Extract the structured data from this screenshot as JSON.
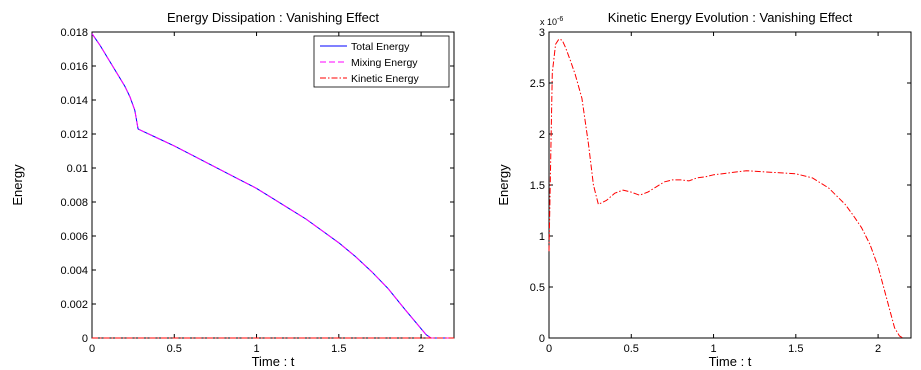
{
  "chart_data": [
    {
      "type": "line",
      "title": "Energy Dissipation : Vanishing Effect",
      "xlabel": "Time : t",
      "ylabel": "Energy",
      "xlim": [
        0,
        2.2
      ],
      "ylim": [
        0,
        0.018
      ],
      "grid": false,
      "legend_position": "top-right",
      "xticks": [
        0,
        0.5,
        1,
        1.5,
        2
      ],
      "xtick_labels": [
        "0",
        "0.5",
        "1",
        "1.5",
        "2"
      ],
      "yticks": [
        0,
        0.002,
        0.004,
        0.006,
        0.008,
        0.01,
        0.012,
        0.014,
        0.016,
        0.018
      ],
      "ytick_labels": [
        "0",
        "0.002",
        "0.004",
        "0.006",
        "0.008",
        "0.01",
        "0.012",
        "0.014",
        "0.016",
        "0.018"
      ],
      "series": [
        {
          "name": "Total Energy",
          "color": "#0000ff",
          "style": "solid",
          "x": [
            0,
            0.05,
            0.1,
            0.15,
            0.2,
            0.23,
            0.26,
            0.28,
            0.3,
            0.4,
            0.5,
            0.6,
            0.7,
            0.8,
            0.9,
            1.0,
            1.1,
            1.2,
            1.3,
            1.4,
            1.5,
            1.6,
            1.7,
            1.8,
            1.9,
            2.0,
            2.03,
            2.06,
            2.08,
            2.1,
            2.2
          ],
          "y": [
            0.0179,
            0.0172,
            0.0164,
            0.0156,
            0.0148,
            0.0142,
            0.0134,
            0.0123,
            0.0122,
            0.01175,
            0.0113,
            0.0108,
            0.0103,
            0.0098,
            0.0093,
            0.0088,
            0.0082,
            0.0076,
            0.007,
            0.0063,
            0.0056,
            0.0048,
            0.0039,
            0.0029,
            0.0017,
            0.00055,
            0.0002,
            0.0,
            0.0,
            0.0,
            0.0
          ]
        },
        {
          "name": "Mixing Energy",
          "color": "#ff00ff",
          "style": "dashed",
          "x": [
            0,
            0.05,
            0.1,
            0.15,
            0.2,
            0.23,
            0.26,
            0.28,
            0.3,
            0.4,
            0.5,
            0.6,
            0.7,
            0.8,
            0.9,
            1.0,
            1.1,
            1.2,
            1.3,
            1.4,
            1.5,
            1.6,
            1.7,
            1.8,
            1.9,
            2.0,
            2.03,
            2.06,
            2.08,
            2.1,
            2.2
          ],
          "y": [
            0.0179,
            0.0172,
            0.0164,
            0.0156,
            0.0148,
            0.0142,
            0.0134,
            0.0123,
            0.0122,
            0.01175,
            0.0113,
            0.0108,
            0.0103,
            0.0098,
            0.0093,
            0.0088,
            0.0082,
            0.0076,
            0.007,
            0.0063,
            0.0056,
            0.0048,
            0.0039,
            0.0029,
            0.0017,
            0.00055,
            0.0002,
            0.0,
            0.0,
            0.0,
            0.0
          ]
        },
        {
          "name": "Kinetic Energy",
          "color": "#ff0000",
          "style": "dashdot",
          "x": [
            0,
            2.2
          ],
          "y": [
            0,
            0
          ]
        }
      ]
    },
    {
      "type": "line",
      "title": "Kinetic Energy Evolution : Vanishing Effect",
      "xlabel": "Time : t",
      "ylabel": "Energy",
      "y_exponent_base": "x 10",
      "y_exponent": "-6",
      "xlim": [
        0,
        2.2
      ],
      "ylim": [
        0,
        3
      ],
      "grid": false,
      "xticks": [
        0,
        0.5,
        1,
        1.5,
        2
      ],
      "xtick_labels": [
        "0",
        "0.5",
        "1",
        "1.5",
        "2"
      ],
      "yticks": [
        0,
        0.5,
        1,
        1.5,
        2,
        2.5,
        3
      ],
      "ytick_labels": [
        "0",
        "0.5",
        "1",
        "1.5",
        "2",
        "2.5",
        "3"
      ],
      "series": [
        {
          "color": "#ff0000",
          "style": "dashdot",
          "x": [
            0,
            0.02,
            0.04,
            0.06,
            0.08,
            0.1,
            0.13,
            0.16,
            0.2,
            0.24,
            0.27,
            0.3,
            0.35,
            0.4,
            0.45,
            0.5,
            0.55,
            0.6,
            0.65,
            0.7,
            0.75,
            0.8,
            0.85,
            0.9,
            0.95,
            1.0,
            1.1,
            1.2,
            1.3,
            1.4,
            1.5,
            1.6,
            1.7,
            1.8,
            1.85,
            1.9,
            1.95,
            2.0,
            2.05,
            2.1,
            2.13,
            2.15
          ],
          "y": [
            0.85,
            2.6,
            2.88,
            2.93,
            2.92,
            2.85,
            2.72,
            2.58,
            2.35,
            1.9,
            1.5,
            1.31,
            1.35,
            1.42,
            1.45,
            1.43,
            1.4,
            1.43,
            1.48,
            1.53,
            1.55,
            1.55,
            1.54,
            1.57,
            1.58,
            1.6,
            1.62,
            1.64,
            1.63,
            1.62,
            1.61,
            1.57,
            1.47,
            1.31,
            1.2,
            1.08,
            0.92,
            0.7,
            0.4,
            0.1,
            0.02,
            0.0
          ]
        }
      ]
    }
  ]
}
